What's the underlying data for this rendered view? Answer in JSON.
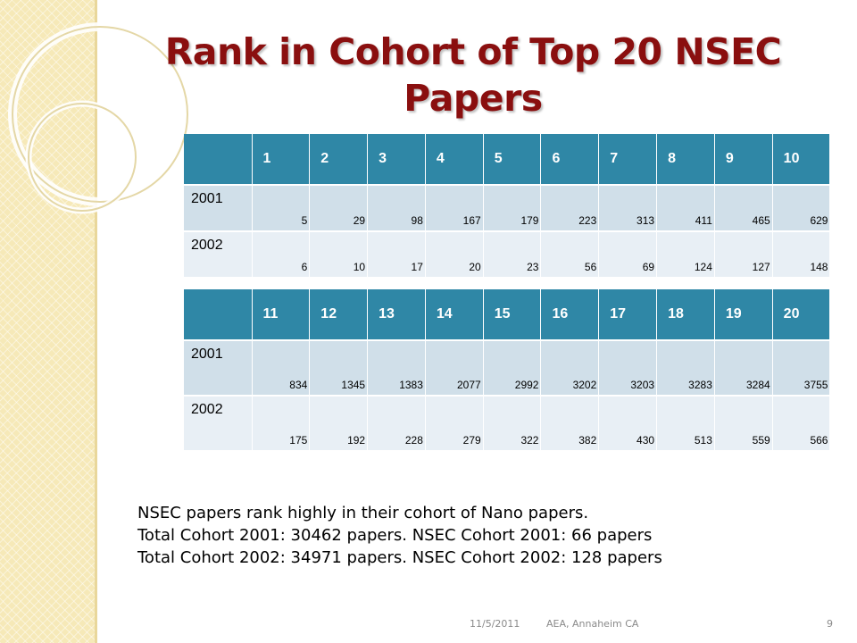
{
  "slide": {
    "title_line1": "Rank in Cohort of Top 20 NSEC",
    "title_line2": "Papers"
  },
  "table1": {
    "header": [
      "",
      "1",
      "2",
      "3",
      "4",
      "5",
      "6",
      "7",
      "8",
      "9",
      "10"
    ],
    "rows": [
      {
        "year": "2001",
        "values": [
          "5",
          "29",
          "98",
          "167",
          "179",
          "223",
          "313",
          "411",
          "465",
          "629"
        ]
      },
      {
        "year": "2002",
        "values": [
          "6",
          "10",
          "17",
          "20",
          "23",
          "56",
          "69",
          "124",
          "127",
          "148"
        ]
      }
    ]
  },
  "table2": {
    "header": [
      "",
      "11",
      "12",
      "13",
      "14",
      "15",
      "16",
      "17",
      "18",
      "19",
      "20"
    ],
    "rows": [
      {
        "year": "2001",
        "values": [
          "834",
          "1345",
          "1383",
          "2077",
          "2992",
          "3202",
          "3203",
          "3283",
          "3284",
          "3755"
        ]
      },
      {
        "year": "2002",
        "values": [
          "175",
          "192",
          "228",
          "279",
          "322",
          "382",
          "430",
          "513",
          "559",
          "566"
        ]
      }
    ]
  },
  "notes": [
    "NSEC papers rank highly in their cohort of Nano papers.",
    "Total Cohort 2001:  30462 papers. NSEC Cohort 2001:  66 papers",
    "Total Cohort 2002:  34971 papers. NSEC Cohort 2002:  128 papers"
  ],
  "footer": {
    "date": "11/5/2011",
    "event": "AEA, Annaheim CA",
    "page": "9"
  },
  "colors": {
    "title": "#8a0f0f",
    "table_header": "#2f87a6",
    "row_dark": "#d0dfe9",
    "row_light": "#e8eff5",
    "side_band": "#f6e9b8"
  }
}
